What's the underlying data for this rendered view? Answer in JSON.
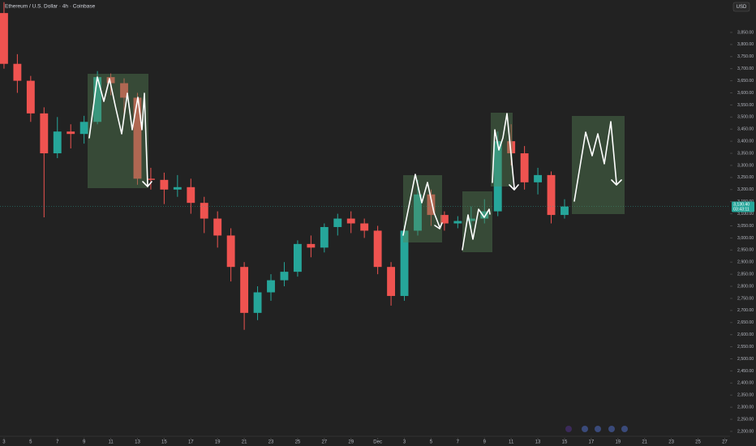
{
  "chart_data": {
    "type": "candlestick",
    "title": "Ethereum / U.S. Dollar · 4h · Coinbase",
    "currency": "USD",
    "x": [
      0,
      1,
      2,
      3,
      4,
      5,
      6,
      7,
      8,
      9,
      10,
      11,
      12,
      13,
      14,
      15,
      16,
      17,
      18,
      19,
      20,
      21,
      22,
      23,
      24,
      25,
      26,
      27,
      28,
      29,
      30,
      31,
      32,
      33,
      34,
      35,
      36,
      37,
      38,
      39,
      40,
      41,
      42
    ],
    "open": [
      3930,
      3720,
      3650,
      3515,
      3350,
      3440,
      3430,
      3480,
      3665,
      3640,
      3580,
      3245,
      3240,
      3200,
      3210,
      3145,
      3080,
      3010,
      2880,
      2690,
      2775,
      2825,
      2860,
      2975,
      2960,
      3045,
      3080,
      3060,
      3030,
      2880,
      2760,
      3030,
      3180,
      3095,
      3060,
      3070,
      3080,
      3110,
      3400,
      3350,
      3230,
      3260,
      3095
    ],
    "high": [
      3975,
      3760,
      3670,
      3540,
      3500,
      3470,
      3505,
      3690,
      3680,
      3660,
      3600,
      3290,
      3270,
      3260,
      3245,
      3170,
      3110,
      3040,
      2900,
      2800,
      2850,
      2900,
      2990,
      3010,
      3060,
      3100,
      3110,
      3080,
      3050,
      2900,
      3050,
      3240,
      3200,
      3110,
      3090,
      3130,
      3160,
      3440,
      3470,
      3380,
      3290,
      3275,
      3160
    ],
    "low": [
      3700,
      3600,
      3480,
      3085,
      3330,
      3370,
      3390,
      3470,
      3590,
      3500,
      3220,
      3200,
      3140,
      3170,
      3100,
      3020,
      2960,
      2820,
      2620,
      2660,
      2740,
      2800,
      2840,
      2920,
      2940,
      3010,
      3020,
      3000,
      2850,
      2720,
      2740,
      3010,
      3050,
      3030,
      3040,
      3040,
      3060,
      3090,
      3300,
      3200,
      3180,
      3060,
      3080
    ],
    "close": [
      3720,
      3650,
      3515,
      3350,
      3440,
      3430,
      3480,
      3665,
      3640,
      3580,
      3245,
      3240,
      3200,
      3210,
      3145,
      3080,
      3010,
      2880,
      2690,
      2775,
      2825,
      2860,
      2975,
      2960,
      3045,
      3080,
      3060,
      3030,
      2880,
      2760,
      3030,
      3180,
      3095,
      3060,
      3070,
      3080,
      3110,
      3400,
      3350,
      3230,
      3260,
      3095,
      3130
    ],
    "up_color": "#26a69a",
    "down_color": "#ef5350",
    "last_price": 3130.4,
    "last_price_label": "3,130.40",
    "countdown": "03:43:11",
    "xlim": [
      -0.3,
      54.4
    ],
    "ylim": [
      2173,
      3984
    ],
    "xticks": [
      {
        "value": 0,
        "label": "3"
      },
      {
        "value": 2,
        "label": "5"
      },
      {
        "value": 4,
        "label": "7"
      },
      {
        "value": 6,
        "label": "9"
      },
      {
        "value": 8,
        "label": "11"
      },
      {
        "value": 10,
        "label": "13"
      },
      {
        "value": 12,
        "label": "15"
      },
      {
        "value": 14,
        "label": "17"
      },
      {
        "value": 16,
        "label": "19"
      },
      {
        "value": 18,
        "label": "21"
      },
      {
        "value": 20,
        "label": "23"
      },
      {
        "value": 22,
        "label": "25"
      },
      {
        "value": 24,
        "label": "27"
      },
      {
        "value": 26,
        "label": "29"
      },
      {
        "value": 28,
        "label": "Dec"
      },
      {
        "value": 30,
        "label": "3"
      },
      {
        "value": 32,
        "label": "5"
      },
      {
        "value": 34,
        "label": "7"
      },
      {
        "value": 36,
        "label": "9"
      },
      {
        "value": 38,
        "label": "11"
      },
      {
        "value": 40,
        "label": "13"
      },
      {
        "value": 42,
        "label": "15"
      },
      {
        "value": 44,
        "label": "17"
      },
      {
        "value": 46,
        "label": "19"
      },
      {
        "value": 48,
        "label": "21"
      },
      {
        "value": 50,
        "label": "23"
      },
      {
        "value": 52,
        "label": "25"
      },
      {
        "value": 54,
        "label": "27"
      }
    ],
    "yticks": [
      {
        "value": 2200,
        "label": "2,200.00"
      },
      {
        "value": 2250,
        "label": "2,250.00"
      },
      {
        "value": 2300,
        "label": "2,300.00"
      },
      {
        "value": 2350,
        "label": "2,350.00"
      },
      {
        "value": 2400,
        "label": "2,400.00"
      },
      {
        "value": 2450,
        "label": "2,450.00"
      },
      {
        "value": 2500,
        "label": "2,500.00"
      },
      {
        "value": 2550,
        "label": "2,550.00"
      },
      {
        "value": 2600,
        "label": "2,600.00"
      },
      {
        "value": 2650,
        "label": "2,650.00"
      },
      {
        "value": 2700,
        "label": "2,700.00"
      },
      {
        "value": 2750,
        "label": "2,750.00"
      },
      {
        "value": 2800,
        "label": "2,800.00"
      },
      {
        "value": 2850,
        "label": "2,850.00"
      },
      {
        "value": 2900,
        "label": "2,900.00"
      },
      {
        "value": 2950,
        "label": "2,950.00"
      },
      {
        "value": 3000,
        "label": "3,000.00"
      },
      {
        "value": 3050,
        "label": "3,050.00"
      },
      {
        "value": 3100,
        "label": "3,100.00"
      },
      {
        "value": 3150,
        "label": "3,150.00"
      },
      {
        "value": 3200,
        "label": "3,200.00"
      },
      {
        "value": 3250,
        "label": "3,250.00"
      },
      {
        "value": 3300,
        "label": "3,300.00"
      },
      {
        "value": 3350,
        "label": "3,350.00"
      },
      {
        "value": 3400,
        "label": "3,400.00"
      },
      {
        "value": 3450,
        "label": "3,450.00"
      },
      {
        "value": 3500,
        "label": "3,500.00"
      },
      {
        "value": 3550,
        "label": "3,550.00"
      },
      {
        "value": 3600,
        "label": "3,600.00"
      },
      {
        "value": 3650,
        "label": "3,650.00"
      },
      {
        "value": 3700,
        "label": "3,700.00"
      },
      {
        "value": 3750,
        "label": "3,750.00"
      },
      {
        "value": 3800,
        "label": "3,800.00"
      },
      {
        "value": 3850,
        "label": "3,850.00"
      }
    ]
  }
}
